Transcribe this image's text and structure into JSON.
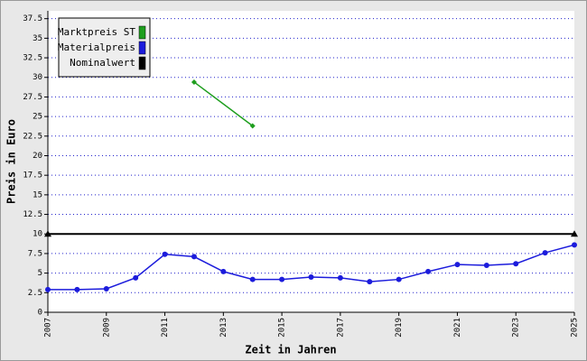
{
  "chart_data": {
    "type": "line",
    "x_label": "Zeit in Jahren",
    "y_label": "Preis in Euro",
    "xlim": [
      2007,
      2025
    ],
    "xticks": [
      2007,
      2009,
      2011,
      2013,
      2015,
      2017,
      2019,
      2021,
      2023,
      2025
    ],
    "ylim": [
      0,
      38.5
    ],
    "yticks": [
      0,
      2.5,
      5,
      7.5,
      10,
      12.5,
      15,
      17.5,
      20,
      22.5,
      25,
      27.5,
      30,
      32.5,
      35,
      37.5
    ],
    "grid": true,
    "legend": "upper left",
    "series": [
      {
        "name": "Marktpreis ST",
        "color": "#1e9e1e",
        "marker": "diamond",
        "x": [
          2012,
          2014
        ],
        "values": [
          29.4,
          23.8
        ]
      },
      {
        "name": "Materialpreis",
        "color": "#1c1cdc",
        "marker": "circle",
        "x": [
          2007,
          2008,
          2009,
          2010,
          2011,
          2012,
          2013,
          2014,
          2015,
          2016,
          2017,
          2018,
          2019,
          2020,
          2021,
          2022,
          2023,
          2024,
          2025
        ],
        "values": [
          2.9,
          2.9,
          3.0,
          4.4,
          7.4,
          7.1,
          5.2,
          4.2,
          4.2,
          4.5,
          4.4,
          3.9,
          4.2,
          5.2,
          6.1,
          6.0,
          6.2,
          7.6,
          8.6
        ]
      },
      {
        "name": "Nominalwert",
        "color": "#000000",
        "marker": "triangle",
        "x": [
          2007,
          2025
        ],
        "values": [
          10,
          10
        ]
      }
    ]
  }
}
